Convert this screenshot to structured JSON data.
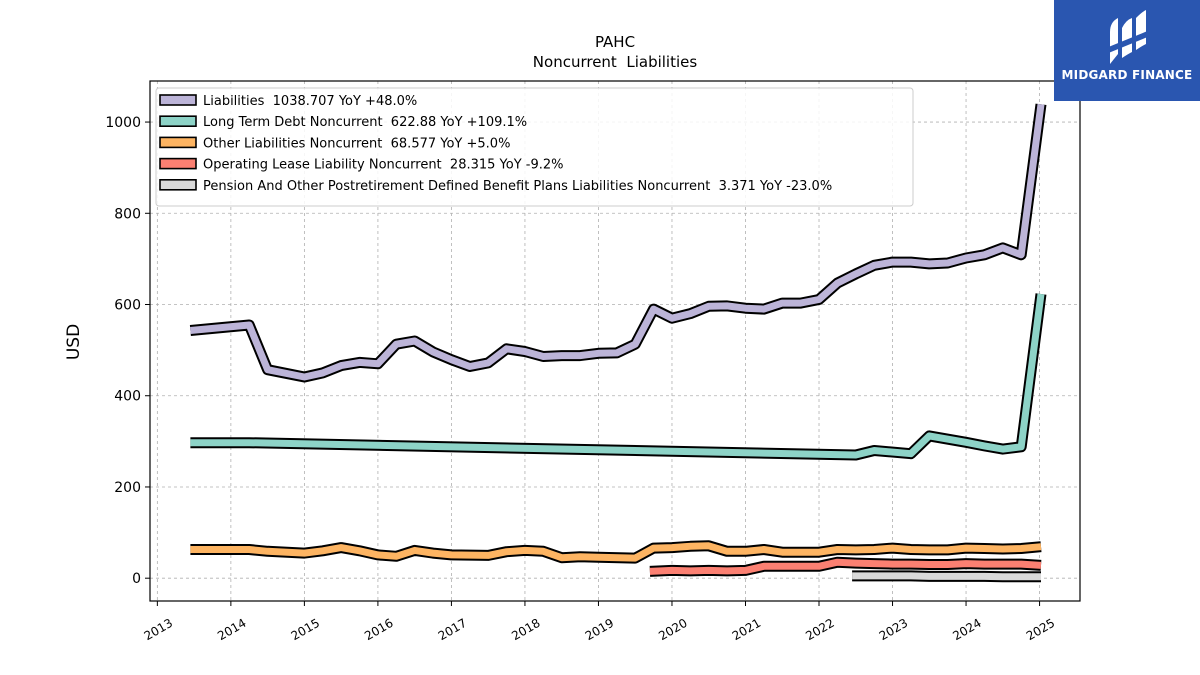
{
  "brand": {
    "name": "MIDGARD FINANCE"
  },
  "chart_data": {
    "type": "line",
    "title": "PAHC",
    "subtitle": "Noncurrent  Liabilities",
    "ylabel": "USD",
    "xlabel": "",
    "xlim": [
      2012.9,
      2025.55
    ],
    "ylim": [
      -50,
      1090
    ],
    "yticks": [
      0,
      200,
      400,
      600,
      800,
      1000
    ],
    "xticks": [
      "2013",
      "2014",
      "2015",
      "2016",
      "2017",
      "2018",
      "2019",
      "2020",
      "2021",
      "2022",
      "2023",
      "2024",
      "2025"
    ],
    "grid": true,
    "legend_position": "top-left",
    "series": [
      {
        "name": "Liabilities  1038.707 YoY +48.0%",
        "color": "#bcb4d8",
        "x": [
          2013.45,
          2014.25,
          2014.5,
          2015.0,
          2015.25,
          2015.5,
          2015.75,
          2016.0,
          2016.25,
          2016.5,
          2016.75,
          2017.0,
          2017.25,
          2017.5,
          2017.75,
          2018.0,
          2018.25,
          2018.5,
          2018.75,
          2019.0,
          2019.25,
          2019.5,
          2019.75,
          2020.0,
          2020.25,
          2020.5,
          2020.75,
          2021.0,
          2021.25,
          2021.5,
          2021.75,
          2022.0,
          2022.25,
          2022.5,
          2022.75,
          2023.0,
          2023.25,
          2023.5,
          2023.75,
          2024.0,
          2024.25,
          2024.5,
          2024.75,
          2025.02
        ],
        "y": [
          543,
          555,
          457,
          441,
          450,
          466,
          473,
          470,
          513,
          520,
          496,
          479,
          464,
          472,
          503,
          497,
          486,
          488,
          488,
          493,
          494,
          513,
          590,
          570,
          580,
          596,
          597,
          592,
          590,
          603,
          603,
          611,
          647,
          667,
          686,
          693,
          693,
          689,
          691,
          702,
          709,
          724,
          709,
          1039
        ]
      },
      {
        "name": "Long Term Debt Noncurrent  622.88 YoY +109.1%",
        "color": "#8dd3c7",
        "x": [
          2013.45,
          2014.25,
          2022.5,
          2022.75,
          2023.25,
          2023.5,
          2024.0,
          2024.25,
          2024.5,
          2024.75,
          2025.02
        ],
        "y": [
          297,
          297,
          270,
          280,
          273,
          312,
          298,
          290,
          283,
          288,
          623
        ]
      },
      {
        "name": "Other Liabilities Noncurrent  68.577 YoY +5.0%",
        "color": "#fdb462",
        "x": [
          2013.45,
          2014.25,
          2014.5,
          2015.0,
          2015.25,
          2015.5,
          2015.75,
          2016.0,
          2016.25,
          2016.5,
          2016.75,
          2017.0,
          2017.5,
          2017.75,
          2018.0,
          2018.25,
          2018.5,
          2018.75,
          2019.0,
          2019.5,
          2019.75,
          2020.0,
          2020.25,
          2020.5,
          2020.75,
          2021.0,
          2021.25,
          2021.5,
          2021.75,
          2022.0,
          2022.25,
          2022.5,
          2022.75,
          2023.0,
          2023.25,
          2023.5,
          2023.75,
          2024.0,
          2024.25,
          2024.5,
          2024.75,
          2025.02
        ],
        "y": [
          63,
          63,
          59,
          55,
          60,
          67,
          60,
          51,
          48,
          61,
          55,
          51,
          50,
          58,
          61,
          59,
          45,
          47,
          46,
          44,
          66,
          67,
          70,
          71,
          59,
          59,
          63,
          57,
          57,
          57,
          63,
          62,
          63,
          66,
          63,
          62,
          62,
          66,
          65,
          64,
          65,
          69
        ]
      },
      {
        "name": "Operating Lease Liability Noncurrent  28.315 YoY -9.2%",
        "color": "#fb8072",
        "x": [
          2019.7,
          2020.0,
          2020.25,
          2020.5,
          2020.75,
          2021.0,
          2021.25,
          2021.5,
          2021.75,
          2022.0,
          2022.25,
          2022.5,
          2022.75,
          2023.0,
          2023.25,
          2023.5,
          2023.75,
          2024.0,
          2024.25,
          2024.5,
          2024.75,
          2025.02
        ],
        "y": [
          15,
          17,
          16,
          17,
          16,
          17,
          26,
          26,
          26,
          26,
          35,
          33,
          32,
          31,
          31,
          30,
          30,
          32,
          31,
          31,
          31,
          28
        ]
      },
      {
        "name": "Pension And Other Postretirement Defined Benefit Plans Liabilities Noncurrent  3.371 YoY -23.0%",
        "color": "#d9d9d9",
        "x": [
          2022.45,
          2022.75,
          2023.0,
          2023.25,
          2023.5,
          2023.75,
          2024.0,
          2024.25,
          2024.5,
          2024.75,
          2025.02
        ],
        "y": [
          5,
          5,
          5,
          5,
          4,
          4,
          4,
          4,
          3,
          3,
          3
        ]
      }
    ]
  }
}
